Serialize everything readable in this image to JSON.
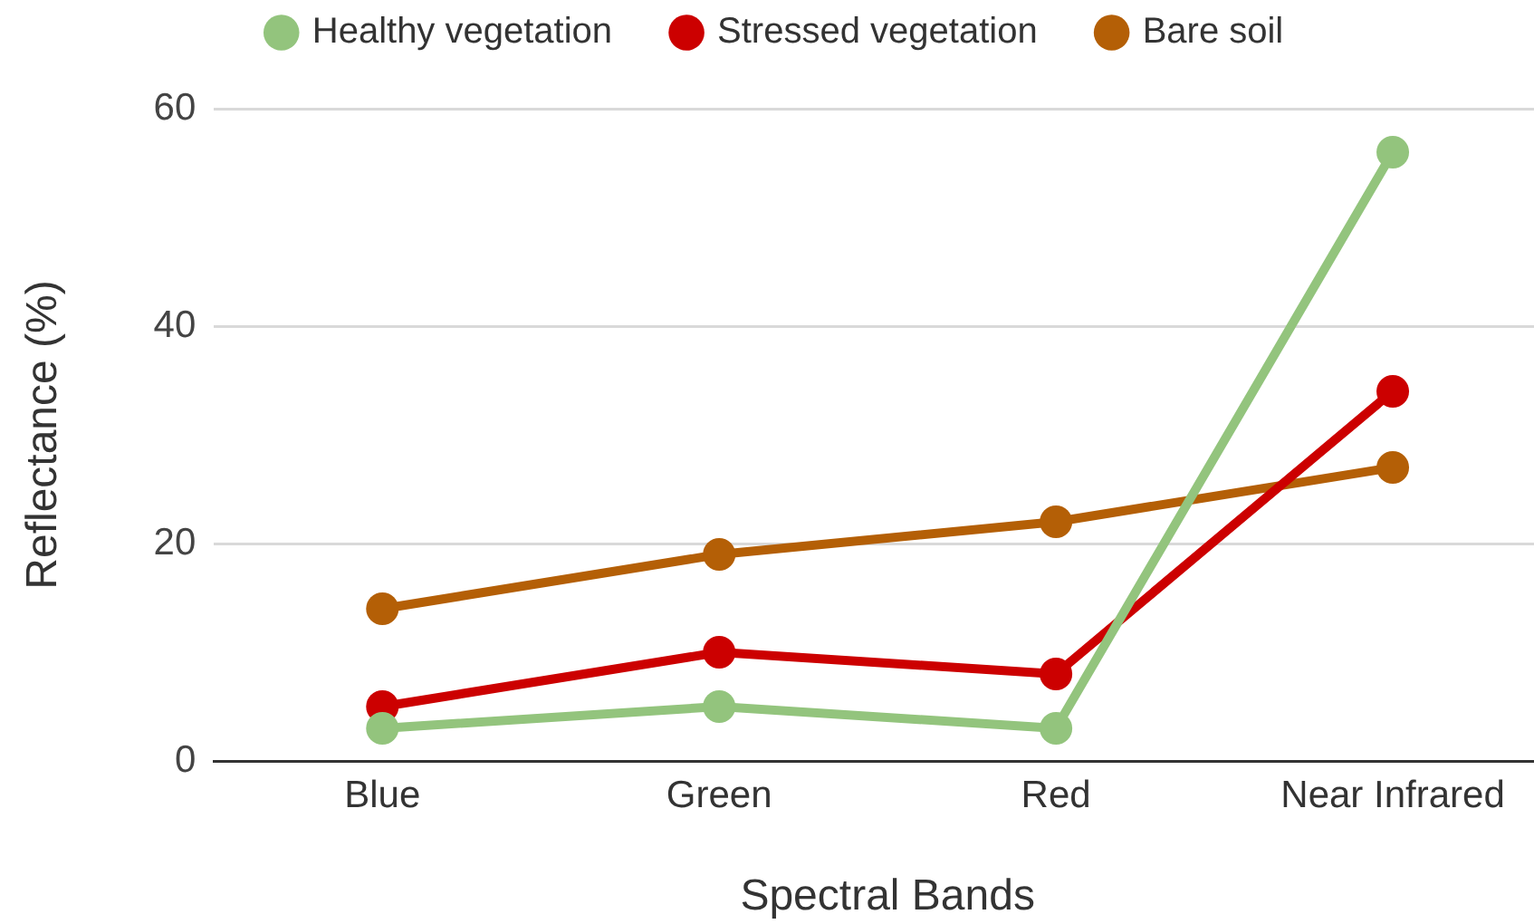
{
  "chart_data": {
    "type": "line",
    "categories": [
      "Blue",
      "Green",
      "Red",
      "Near Infrared"
    ],
    "series": [
      {
        "name": "Healthy vegetation",
        "color": "#93c47d",
        "values": [
          3,
          5,
          3,
          56
        ]
      },
      {
        "name": "Stressed vegetation",
        "color": "#cc0000",
        "values": [
          5,
          10,
          8,
          34
        ]
      },
      {
        "name": "Bare soil",
        "color": "#b45f06",
        "values": [
          14,
          19,
          22,
          27
        ]
      }
    ],
    "xlabel": "Spectral Bands",
    "ylabel": "Reflectance (%)",
    "ylim": [
      0,
      60
    ],
    "yticks": [
      0,
      20,
      40,
      60
    ],
    "grid": "y",
    "legend": "top",
    "marker": "circle",
    "line_style": "solid"
  }
}
